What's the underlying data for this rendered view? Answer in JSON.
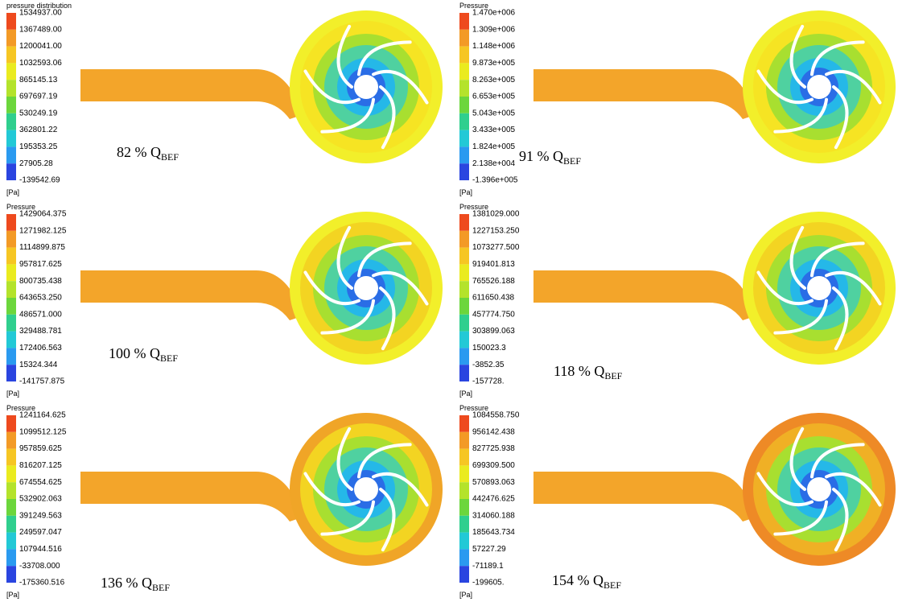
{
  "panels": [
    {
      "legend_title": "pressure distribution",
      "levels": [
        "1534937.00",
        "1367489.00",
        "1200041.00",
        "1032593.06",
        "865145.13",
        "697697.19",
        "530249.19",
        "362801.22",
        "195353.25",
        "27905.28",
        "-139542.69"
      ],
      "unit": "[Pa]",
      "flow": "82 % Q",
      "flow_subscript": "BEF"
    },
    {
      "legend_title": "Pressure",
      "levels": [
        "1.470e+006",
        "1.309e+006",
        "1.148e+006",
        "9.873e+005",
        "8.263e+005",
        "6.653e+005",
        "5.043e+005",
        "3.433e+005",
        "1.824e+005",
        "2.138e+004",
        "-1.396e+005"
      ],
      "unit": "[Pa]",
      "flow": "91 % Q",
      "flow_subscript": "BEF"
    },
    {
      "legend_title": "Pressure",
      "levels": [
        "1429064.375",
        "1271982.125",
        "1114899.875",
        "957817.625",
        "800735.438",
        "643653.250",
        "486571.000",
        "329488.781",
        "172406.563",
        "15324.344",
        "-141757.875"
      ],
      "unit": "[Pa]",
      "flow": "100 % Q",
      "flow_subscript": "BEF"
    },
    {
      "legend_title": "Pressure",
      "levels": [
        "1381029.000",
        "1227153.250",
        "1073277.500",
        "919401.813",
        "765526.188",
        "611650.438",
        "457774.750",
        "303899.063",
        "150023.3",
        "-3852.35",
        "-157728."
      ],
      "unit": "[Pa]",
      "flow": "118 % Q",
      "flow_subscript": "BEF"
    },
    {
      "legend_title": "Pressure",
      "levels": [
        "1241164.625",
        "1099512.125",
        "957859.625",
        "816207.125",
        "674554.625",
        "532902.063",
        "391249.563",
        "249597.047",
        "107944.516",
        "-33708.000",
        "-175360.516"
      ],
      "unit": "[Pa]",
      "flow": "136 % Q",
      "flow_subscript": "BEF"
    },
    {
      "legend_title": "Pressure",
      "levels": [
        "1084558.750",
        "956142.438",
        "827725.938",
        "699309.500",
        "570893.063",
        "442476.625",
        "314060.188",
        "185643.734",
        "57227.29",
        "-71189.1",
        "-199605."
      ],
      "unit": "[Pa]",
      "flow": "154 % Q",
      "flow_subscript": "BEF"
    }
  ]
}
